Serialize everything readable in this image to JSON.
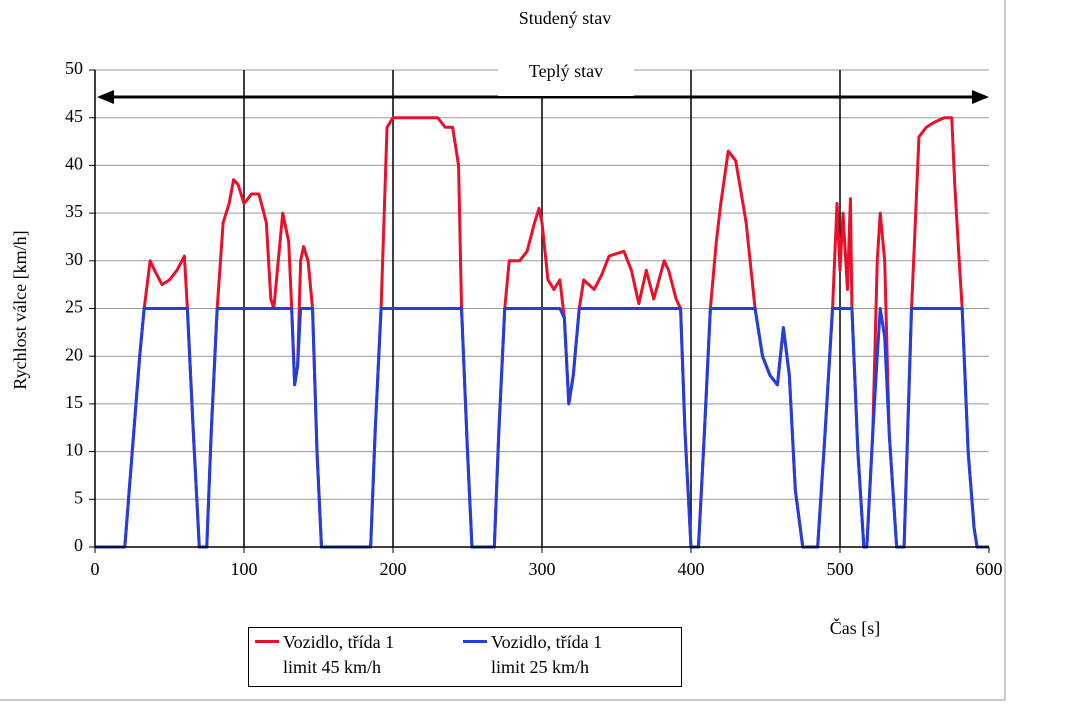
{
  "chart_data": {
    "type": "line",
    "annotations": [
      "Studený stav",
      "Teplý stav"
    ],
    "y_label": "Rychlost válce [km/h]",
    "x_label": "Čas [s]",
    "x": [
      0,
      20,
      25,
      30,
      33,
      37,
      40,
      45,
      50,
      55,
      60,
      62,
      66,
      70,
      75,
      78,
      82,
      86,
      90,
      93,
      96,
      100,
      105,
      110,
      115,
      118,
      120,
      123,
      126,
      130,
      132,
      134,
      136,
      138,
      140,
      143,
      146,
      149,
      152,
      185,
      188,
      192,
      196,
      200,
      230,
      235,
      240,
      244,
      246,
      250,
      253,
      268,
      271,
      275,
      278,
      285,
      290,
      295,
      298,
      300,
      302,
      304,
      308,
      312,
      315,
      318,
      321,
      325,
      328,
      335,
      340,
      345,
      355,
      360,
      365,
      370,
      375,
      382,
      385,
      390,
      393,
      396,
      400,
      405,
      409,
      413,
      417,
      420,
      425,
      430,
      437,
      443,
      448,
      453,
      458,
      462,
      466,
      470,
      475,
      485,
      490,
      495,
      498,
      500,
      502,
      505,
      507,
      508,
      512,
      516,
      518,
      522,
      525,
      527,
      530,
      533,
      538,
      543,
      545,
      548,
      550,
      553,
      558,
      563,
      570,
      575,
      577,
      580,
      582,
      586,
      590,
      592,
      600
    ],
    "series": [
      {
        "name": "Vozidlo, třída 1\nlimit 45 km/h",
        "color": "#e8102a",
        "values": [
          0,
          0,
          10,
          20,
          25,
          30,
          29,
          27.5,
          28,
          29,
          30.5,
          25,
          12,
          0,
          0,
          12,
          25,
          34,
          36,
          38.5,
          38,
          36,
          37,
          37,
          34,
          26,
          25,
          30,
          35,
          32,
          25,
          17,
          19,
          30,
          31.5,
          30,
          25,
          10,
          0,
          0,
          12,
          25,
          44,
          45,
          45,
          44,
          44,
          40,
          25,
          10,
          0,
          0,
          12,
          25,
          30,
          30,
          31,
          34,
          35.5,
          34,
          31,
          28,
          27,
          28,
          24,
          15,
          18,
          25,
          28,
          27,
          28.5,
          30.5,
          31,
          29,
          25.5,
          29,
          26,
          30,
          29,
          26,
          25,
          12,
          0,
          0,
          12,
          25,
          32,
          36,
          41.5,
          40.5,
          34,
          25,
          20,
          18,
          17,
          23,
          18,
          6,
          0,
          0,
          12,
          25,
          36,
          29,
          35,
          27,
          36.5,
          25,
          10,
          0,
          0,
          12,
          30,
          35,
          30,
          12,
          0,
          0,
          10,
          25,
          32,
          43,
          44,
          44.5,
          45,
          45,
          38,
          30,
          25,
          10,
          2,
          0,
          0
        ]
      },
      {
        "name": "Vozidlo, třída 1\nlimit 25 km/h",
        "color": "#1f3fe0",
        "values": [
          0,
          0,
          10,
          20,
          25,
          25,
          25,
          25,
          25,
          25,
          25,
          25,
          12,
          0,
          0,
          12,
          25,
          25,
          25,
          25,
          25,
          25,
          25,
          25,
          25,
          25,
          25,
          25,
          25,
          25,
          25,
          17,
          19,
          25,
          25,
          25,
          25,
          10,
          0,
          0,
          12,
          25,
          25,
          25,
          25,
          25,
          25,
          25,
          25,
          10,
          0,
          0,
          12,
          25,
          25,
          25,
          25,
          25,
          25,
          25,
          25,
          25,
          25,
          25,
          24,
          15,
          18,
          25,
          25,
          25,
          25,
          25,
          25,
          25,
          25,
          25,
          25,
          25,
          25,
          25,
          25,
          12,
          0,
          0,
          12,
          25,
          25,
          25,
          25,
          25,
          25,
          25,
          20,
          18,
          17,
          23,
          18,
          6,
          0,
          0,
          12,
          25,
          25,
          25,
          25,
          25,
          25,
          25,
          10,
          0,
          0,
          12,
          20,
          25,
          22,
          12,
          0,
          0,
          10,
          25,
          25,
          25,
          25,
          25,
          25,
          25,
          25,
          25,
          25,
          10,
          2,
          0,
          0
        ]
      }
    ],
    "xlim": [
      0,
      600
    ],
    "xticks": [
      0,
      100,
      200,
      300,
      400,
      500,
      600
    ],
    "ylim": [
      0,
      50
    ],
    "yticks": [
      0,
      5,
      10,
      15,
      20,
      25,
      30,
      35,
      40,
      45,
      50
    ],
    "grid": true
  }
}
